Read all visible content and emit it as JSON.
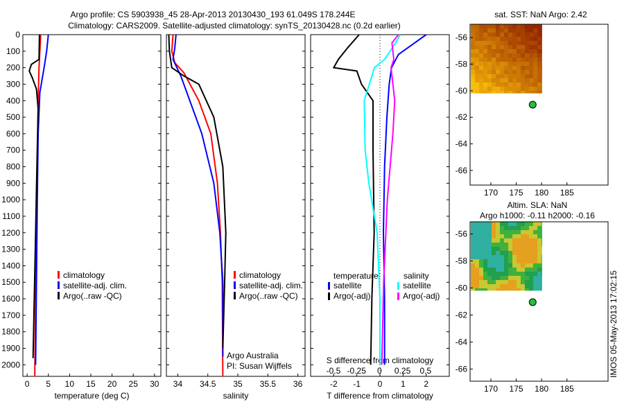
{
  "title_line1": "Argo profile: CS 5903938_45 28-Apr-2013 20130430_193 61.049S 178.244E",
  "title_line2": "Climatology: CARS2009. Satellite-adjusted climatology: synTS_20130428.nc (0.2d earlier)",
  "footer_stamp": "IMOS 05-May-2013 17:02:15",
  "colors": {
    "climatology": "#ff0000",
    "satellite": "#0000ff",
    "argo": "#000000",
    "sal_satellite": "#00ffff",
    "sal_argo": "#ff00ff"
  },
  "chart_data": [
    {
      "type": "line",
      "xlabel": "temperature (deg C)",
      "xticks": [
        0,
        5,
        10,
        15,
        20,
        25,
        30
      ],
      "xlim": [
        -1,
        31.5
      ],
      "ylim": [
        2070,
        0
      ],
      "yticks": [
        0,
        100,
        200,
        300,
        400,
        500,
        600,
        700,
        800,
        900,
        1000,
        1100,
        1200,
        1300,
        1400,
        1500,
        1600,
        1700,
        1800,
        1900,
        2000
      ],
      "legend": [
        "climatology",
        "satellite-adj. clim.",
        "Argo(..raw -QC)"
      ],
      "series": [
        {
          "name": "climatology",
          "color": "#ff0000",
          "x": [
            3.2,
            3.0,
            2.8,
            2.6,
            2.4,
            2.2,
            2.0,
            1.8
          ],
          "y": [
            0,
            100,
            200,
            400,
            800,
            1200,
            1600,
            2070
          ]
        },
        {
          "name": "satellite-adj. clim.",
          "color": "#0000ff",
          "x": [
            5.0,
            4.6,
            4.0,
            3.0,
            2.6,
            2.4,
            2.2,
            2.0
          ],
          "y": [
            0,
            100,
            200,
            350,
            600,
            1000,
            1500,
            2000
          ]
        },
        {
          "name": "Argo(..raw -QC)",
          "color": "#000000",
          "x": [
            2.9,
            2.8,
            1.0,
            0.5,
            1.2,
            2.2,
            2.6,
            2.3,
            2.0,
            1.6,
            1.4
          ],
          "y": [
            0,
            150,
            180,
            220,
            260,
            330,
            450,
            800,
            1200,
            1700,
            1960
          ]
        }
      ]
    },
    {
      "type": "line",
      "xlabel": "salinity",
      "xticks": [
        34,
        34.5,
        35,
        35.5,
        36
      ],
      "xlim": [
        33.81,
        36.12
      ],
      "ylim": [
        2070,
        0
      ],
      "legend": [
        "climatology",
        "satellite-adj. clim.",
        "Argo(..raw -QC)"
      ],
      "annotation": [
        "Argo Australia",
        "PI: Susan Wijffels"
      ],
      "series": [
        {
          "name": "climatology",
          "color": "#ff0000",
          "x": [
            33.92,
            33.9,
            33.95,
            34.1,
            34.35,
            34.55,
            34.66,
            34.71,
            34.74,
            34.75
          ],
          "y": [
            0,
            100,
            170,
            230,
            400,
            600,
            900,
            1200,
            1500,
            2070
          ]
        },
        {
          "name": "satellite-adj. clim.",
          "color": "#0000ff",
          "x": [
            33.97,
            33.95,
            33.92,
            34.05,
            34.2,
            34.4,
            34.6,
            34.7,
            34.75,
            34.75
          ],
          "y": [
            0,
            80,
            150,
            250,
            400,
            600,
            900,
            1200,
            1500,
            1950
          ]
        },
        {
          "name": "Argo(..raw -QC)",
          "color": "#000000",
          "x": [
            33.85,
            33.86,
            33.9,
            34.1,
            34.35,
            34.6,
            34.75,
            34.8,
            34.78,
            34.75
          ],
          "y": [
            0,
            100,
            200,
            250,
            300,
            500,
            800,
            1200,
            1500,
            1900
          ]
        }
      ]
    },
    {
      "type": "line",
      "xlabel": "T difference from climatology",
      "xticks": [
        -2,
        -1,
        0,
        1,
        2
      ],
      "xlim": [
        -3,
        3
      ],
      "x2label": "S difference from climatology",
      "x2ticks": [
        "-0.5",
        "-0.25",
        "0",
        "0.25",
        "0.5"
      ],
      "ylim": [
        2070,
        0
      ],
      "legend_titles": [
        "temperature",
        "salinity"
      ],
      "legend": [
        "satellite",
        "Argo(-adj)",
        "satellite",
        "Argo(-adj)"
      ],
      "series": [
        {
          "name": "T satellite",
          "color": "#0000ff",
          "x": [
            2.0,
            1.5,
            0.8,
            0.5,
            0.4,
            0.3,
            0.2,
            0.15,
            0.2,
            0.2
          ],
          "y": [
            0,
            50,
            120,
            200,
            300,
            500,
            800,
            1200,
            1600,
            2000
          ]
        },
        {
          "name": "T Argo(-adj)",
          "color": "#000000",
          "x": [
            -0.9,
            -1.4,
            -1.8,
            -2.0,
            -1.0,
            -0.8,
            -0.3,
            -0.3,
            -0.25,
            -0.35,
            -0.4
          ],
          "y": [
            0,
            80,
            150,
            200,
            220,
            300,
            400,
            700,
            1200,
            1600,
            2000
          ]
        },
        {
          "name": "S satellite",
          "color": "#00ffff",
          "x": [
            0.22,
            0.17,
            0.05,
            -0.06,
            -0.17,
            -0.16,
            -0.12,
            -0.03,
            0.0,
            0.0
          ],
          "y": [
            0,
            50,
            150,
            200,
            400,
            700,
            900,
            1200,
            1600,
            2000
          ]
        },
        {
          "name": "S Argo(-adj)",
          "color": "#ff00ff",
          "x": [
            0.2,
            0.13,
            0.15,
            0.12,
            0.16,
            0.14,
            0.08,
            0.04,
            0.02
          ],
          "y": [
            0,
            50,
            150,
            200,
            400,
            600,
            1000,
            1500,
            2000
          ]
        }
      ]
    }
  ],
  "maps": [
    {
      "title": "sat. SST: NaN Argo: 2.42",
      "xticks": [
        170,
        175,
        180,
        185
      ],
      "yticks": [
        -56,
        -58,
        -60,
        -62,
        -64,
        -66
      ],
      "argo_position": {
        "lon": 178.244,
        "lat": -61.049
      },
      "palette": "sst"
    },
    {
      "title": "Altim. SLA: NaN",
      "subtitle": "Argo h1000: -0.11 h2000: -0.16",
      "xticks": [
        170,
        175,
        180,
        185
      ],
      "yticks": [
        -56,
        -58,
        -60,
        -62,
        -64,
        -66
      ],
      "argo_position": {
        "lon": 178.244,
        "lat": -61.049
      },
      "palette": "sla"
    }
  ]
}
